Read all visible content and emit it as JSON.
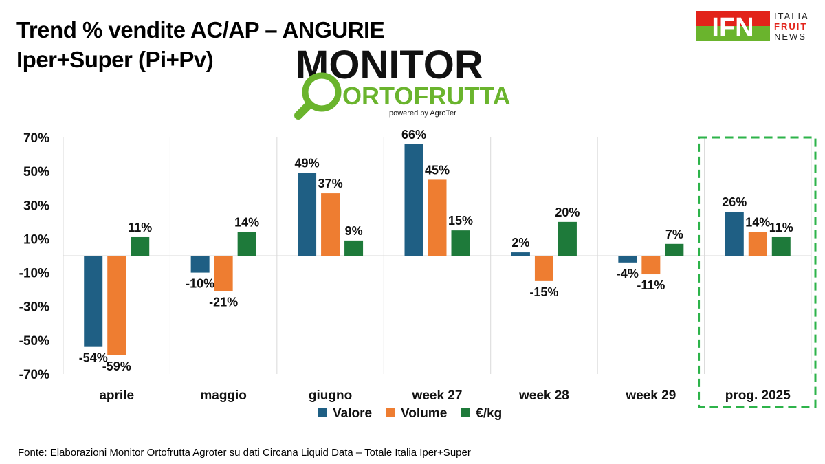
{
  "header": {
    "title_line1": "Trend % vendite AC/AP – ANGURIE",
    "title_line2": "Iper+Super (Pi+Pv)"
  },
  "logos": {
    "monitor_word1": "MONITOR",
    "monitor_word2": "ORTOFRUTTA",
    "monitor_powered": "powered by AgroTer",
    "ifn_mark": "IFN",
    "ifn_line1": "ITALIA",
    "ifn_line2": "FRUIT",
    "ifn_line3": "NEWS"
  },
  "footnote": "Fonte: Elaborazioni Monitor Ortofrutta Agroter su dati Circana Liquid Data – Totale Italia Iper+Super",
  "colors": {
    "valore": "#1f5f84",
    "volume": "#ee7d31",
    "eur_kg": "#1e7a3a",
    "highlight_border": "#2db34a",
    "logo_green": "#6ab42d",
    "ifn_red": "#e2231a"
  },
  "chart_data": {
    "type": "bar",
    "categories": [
      "aprile",
      "maggio",
      "giugno",
      "week 27",
      "week 28",
      "week 29",
      "prog. 2025"
    ],
    "series": [
      {
        "name": "Valore",
        "values": [
          -54,
          -10,
          49,
          66,
          2,
          -4,
          26
        ]
      },
      {
        "name": "Volume",
        "values": [
          -59,
          -21,
          37,
          45,
          -15,
          -11,
          14
        ]
      },
      {
        "name": "€/kg",
        "values": [
          11,
          14,
          9,
          15,
          20,
          7,
          11
        ]
      }
    ],
    "ylim": [
      -70,
      70
    ],
    "yticks": [
      "70%",
      "50%",
      "30%",
      "10%",
      "-10%",
      "-30%",
      "-50%",
      "-70%"
    ],
    "ytick_values": [
      70,
      50,
      30,
      10,
      -10,
      -30,
      -50,
      -70
    ],
    "value_suffix": "%",
    "grid": "vertical category separators",
    "legend": "bottom",
    "highlighted_category": "prog. 2025"
  }
}
